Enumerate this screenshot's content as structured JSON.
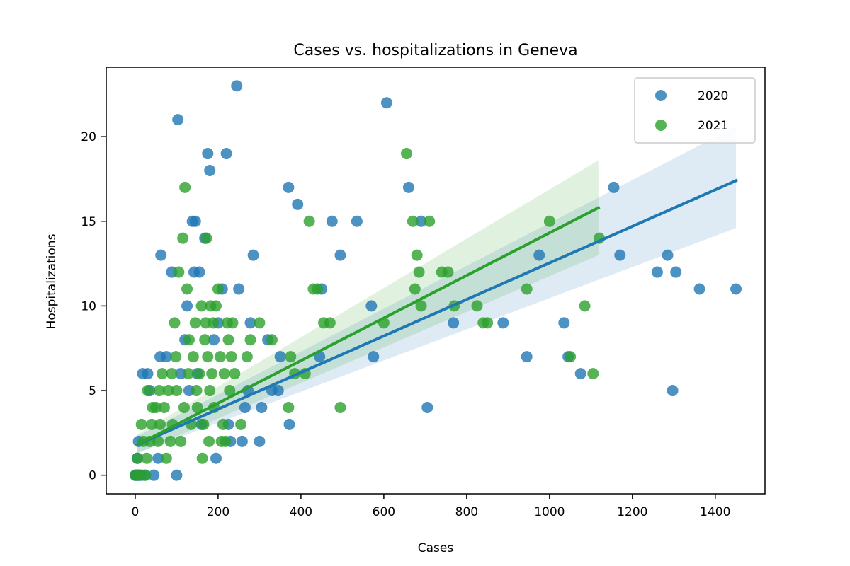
{
  "chart_data": {
    "type": "scatter",
    "title": "Cases vs. hospitalizations in Geneva",
    "xlabel": "Cases",
    "ylabel": "Hospitalizations",
    "xlim": [
      -70,
      1520
    ],
    "ylim": [
      -1.1,
      24.1
    ],
    "xticks": [
      0,
      200,
      400,
      600,
      800,
      1000,
      1200,
      1400
    ],
    "yticks": [
      0,
      5,
      10,
      15,
      20
    ],
    "grid": false,
    "legend_position": "top-right",
    "series": [
      {
        "name": "2020",
        "color": "#1f77b4",
        "points": [
          [
            0,
            0
          ],
          [
            2,
            0
          ],
          [
            4,
            0
          ],
          [
            6,
            0
          ],
          [
            8,
            0
          ],
          [
            10,
            0
          ],
          [
            5,
            1
          ],
          [
            8,
            2
          ],
          [
            14,
            0
          ],
          [
            22,
            0
          ],
          [
            18,
            6
          ],
          [
            30,
            6
          ],
          [
            35,
            5
          ],
          [
            45,
            0
          ],
          [
            55,
            1
          ],
          [
            60,
            7
          ],
          [
            62,
            13
          ],
          [
            75,
            7
          ],
          [
            88,
            12
          ],
          [
            100,
            0
          ],
          [
            103,
            21
          ],
          [
            110,
            6
          ],
          [
            120,
            8
          ],
          [
            125,
            10
          ],
          [
            130,
            5
          ],
          [
            138,
            15
          ],
          [
            142,
            12
          ],
          [
            145,
            15
          ],
          [
            150,
            6
          ],
          [
            155,
            12
          ],
          [
            160,
            3
          ],
          [
            168,
            14
          ],
          [
            175,
            19
          ],
          [
            180,
            18
          ],
          [
            190,
            8
          ],
          [
            195,
            1
          ],
          [
            200,
            9
          ],
          [
            210,
            11
          ],
          [
            220,
            19
          ],
          [
            225,
            3
          ],
          [
            230,
            2
          ],
          [
            245,
            23
          ],
          [
            250,
            11
          ],
          [
            258,
            2
          ],
          [
            265,
            4
          ],
          [
            272,
            5
          ],
          [
            278,
            9
          ],
          [
            285,
            13
          ],
          [
            300,
            2
          ],
          [
            305,
            4
          ],
          [
            320,
            8
          ],
          [
            330,
            5
          ],
          [
            345,
            5
          ],
          [
            350,
            7
          ],
          [
            370,
            17
          ],
          [
            372,
            3
          ],
          [
            392,
            16
          ],
          [
            445,
            7
          ],
          [
            450,
            11
          ],
          [
            475,
            15
          ],
          [
            495,
            13
          ],
          [
            535,
            15
          ],
          [
            570,
            10
          ],
          [
            575,
            7
          ],
          [
            607,
            22
          ],
          [
            660,
            17
          ],
          [
            690,
            15
          ],
          [
            705,
            4
          ],
          [
            768,
            9
          ],
          [
            888,
            9
          ],
          [
            945,
            7
          ],
          [
            975,
            13
          ],
          [
            1035,
            9
          ],
          [
            1045,
            7
          ],
          [
            1075,
            6
          ],
          [
            1155,
            17
          ],
          [
            1170,
            13
          ],
          [
            1260,
            12
          ],
          [
            1285,
            13
          ],
          [
            1297,
            5
          ],
          [
            1305,
            12
          ],
          [
            1362,
            11
          ],
          [
            1450,
            11
          ]
        ],
        "regression": {
          "x": [
            5,
            1450
          ],
          "y": [
            1.8,
            17.4
          ]
        },
        "ci_upper": {
          "x": [
            5,
            1450
          ],
          "y": [
            2.3,
            20.6
          ]
        },
        "ci_lower": {
          "x": [
            5,
            1450
          ],
          "y": [
            1.3,
            14.6
          ]
        }
      },
      {
        "name": "2021",
        "color": "#2ca02c",
        "points": [
          [
            0,
            0
          ],
          [
            5,
            1
          ],
          [
            10,
            0
          ],
          [
            15,
            3
          ],
          [
            20,
            2
          ],
          [
            25,
            0
          ],
          [
            28,
            1
          ],
          [
            30,
            5
          ],
          [
            35,
            2
          ],
          [
            40,
            3
          ],
          [
            42,
            4
          ],
          [
            50,
            4
          ],
          [
            55,
            2
          ],
          [
            58,
            5
          ],
          [
            60,
            3
          ],
          [
            65,
            6
          ],
          [
            70,
            4
          ],
          [
            75,
            1
          ],
          [
            80,
            5
          ],
          [
            85,
            2
          ],
          [
            88,
            6
          ],
          [
            90,
            3
          ],
          [
            95,
            9
          ],
          [
            98,
            7
          ],
          [
            100,
            5
          ],
          [
            105,
            12
          ],
          [
            110,
            2
          ],
          [
            115,
            14
          ],
          [
            118,
            4
          ],
          [
            120,
            17
          ],
          [
            125,
            11
          ],
          [
            128,
            6
          ],
          [
            130,
            8
          ],
          [
            135,
            3
          ],
          [
            140,
            7
          ],
          [
            145,
            9
          ],
          [
            148,
            5
          ],
          [
            150,
            4
          ],
          [
            155,
            6
          ],
          [
            160,
            10
          ],
          [
            162,
            1
          ],
          [
            165,
            3
          ],
          [
            168,
            8
          ],
          [
            170,
            9
          ],
          [
            172,
            14
          ],
          [
            175,
            7
          ],
          [
            178,
            2
          ],
          [
            180,
            5
          ],
          [
            182,
            10
          ],
          [
            185,
            6
          ],
          [
            188,
            9
          ],
          [
            190,
            4
          ],
          [
            195,
            10
          ],
          [
            200,
            11
          ],
          [
            205,
            7
          ],
          [
            208,
            2
          ],
          [
            212,
            3
          ],
          [
            215,
            6
          ],
          [
            218,
            2
          ],
          [
            222,
            9
          ],
          [
            225,
            8
          ],
          [
            228,
            5
          ],
          [
            232,
            7
          ],
          [
            235,
            9
          ],
          [
            240,
            6
          ],
          [
            255,
            3
          ],
          [
            270,
            7
          ],
          [
            278,
            8
          ],
          [
            300,
            9
          ],
          [
            330,
            8
          ],
          [
            370,
            4
          ],
          [
            375,
            7
          ],
          [
            385,
            6
          ],
          [
            410,
            6
          ],
          [
            420,
            15
          ],
          [
            430,
            11
          ],
          [
            440,
            11
          ],
          [
            455,
            9
          ],
          [
            470,
            9
          ],
          [
            495,
            4
          ],
          [
            600,
            9
          ],
          [
            655,
            19
          ],
          [
            670,
            15
          ],
          [
            675,
            11
          ],
          [
            680,
            13
          ],
          [
            685,
            12
          ],
          [
            690,
            10
          ],
          [
            710,
            15
          ],
          [
            740,
            12
          ],
          [
            755,
            12
          ],
          [
            770,
            10
          ],
          [
            825,
            10
          ],
          [
            840,
            9
          ],
          [
            850,
            9
          ],
          [
            945,
            11
          ],
          [
            1000,
            15
          ],
          [
            1050,
            7
          ],
          [
            1085,
            10
          ],
          [
            1105,
            6
          ],
          [
            1120,
            14
          ]
        ],
        "regression": {
          "x": [
            5,
            1118
          ],
          "y": [
            1.8,
            15.8
          ]
        },
        "ci_upper": {
          "x": [
            5,
            1118
          ],
          "y": [
            2.4,
            18.6
          ]
        },
        "ci_lower": {
          "x": [
            5,
            1118
          ],
          "y": [
            1.3,
            13.0
          ]
        }
      }
    ]
  }
}
